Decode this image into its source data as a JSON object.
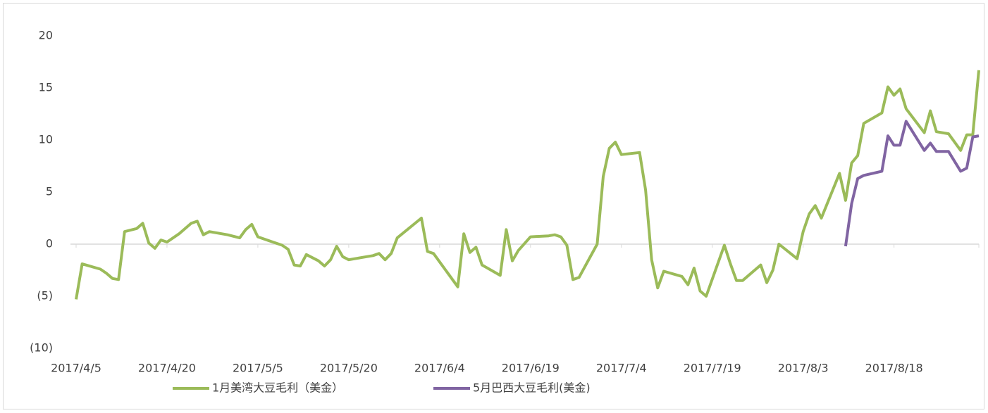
{
  "chart_data": {
    "type": "line",
    "x": [
      "2017/4/5",
      "2017/4/6",
      "2017/4/9",
      "2017/4/10",
      "2017/4/11",
      "2017/4/12",
      "2017/4/13",
      "2017/4/15",
      "2017/4/16",
      "2017/4/17",
      "2017/4/18",
      "2017/4/19",
      "2017/4/20",
      "2017/4/22",
      "2017/4/24",
      "2017/4/25",
      "2017/4/26",
      "2017/4/27",
      "2017/4/30",
      "2017/5/2",
      "2017/5/3",
      "2017/5/4",
      "2017/5/5",
      "2017/5/7",
      "2017/5/9",
      "2017/5/10",
      "2017/5/11",
      "2017/5/12",
      "2017/5/13",
      "2017/5/15",
      "2017/5/16",
      "2017/5/17",
      "2017/5/18",
      "2017/5/19",
      "2017/5/20",
      "2017/5/22",
      "2017/5/24",
      "2017/5/25",
      "2017/5/26",
      "2017/5/27",
      "2017/5/28",
      "2017/6/1",
      "2017/6/2",
      "2017/6/3",
      "2017/6/5",
      "2017/6/7",
      "2017/6/8",
      "2017/6/9",
      "2017/6/10",
      "2017/6/11",
      "2017/6/14",
      "2017/6/15",
      "2017/6/16",
      "2017/6/17",
      "2017/6/19",
      "2017/6/22",
      "2017/6/23",
      "2017/6/24",
      "2017/6/25",
      "2017/6/26",
      "2017/6/27",
      "2017/6/30",
      "2017/7/1",
      "2017/7/2",
      "2017/7/3",
      "2017/7/4",
      "2017/7/7",
      "2017/7/8",
      "2017/7/9",
      "2017/7/10",
      "2017/7/11",
      "2017/7/14",
      "2017/7/15",
      "2017/7/16",
      "2017/7/17",
      "2017/7/18",
      "2017/7/21",
      "2017/7/22",
      "2017/7/23",
      "2017/7/24",
      "2017/7/27",
      "2017/7/28",
      "2017/7/29",
      "2017/7/30",
      "2017/8/2",
      "2017/8/3",
      "2017/8/4",
      "2017/8/5",
      "2017/8/6",
      "2017/8/9",
      "2017/8/10",
      "2017/8/11",
      "2017/8/12",
      "2017/8/13",
      "2017/8/16",
      "2017/8/17",
      "2017/8/18",
      "2017/8/19",
      "2017/8/20",
      "2017/8/23",
      "2017/8/24",
      "2017/8/25",
      "2017/8/27",
      "2017/8/29",
      "2017/8/30",
      "2017/8/31",
      "2017/9/1"
    ],
    "series": [
      {
        "name": "1月美湾大豆毛利（美金）",
        "color": "#9bbb59",
        "values": [
          -5.3,
          -1.9,
          -2.4,
          -2.8,
          -3.3,
          -3.4,
          1.2,
          1.5,
          2.0,
          0.1,
          -0.4,
          0.4,
          0.2,
          1.0,
          2.0,
          2.2,
          0.9,
          1.2,
          0.9,
          0.6,
          1.4,
          1.9,
          0.7,
          0.3,
          -0.1,
          -0.5,
          -2.0,
          -2.1,
          -1.0,
          -1.6,
          -2.1,
          -1.5,
          -0.2,
          -1.2,
          -1.5,
          -1.3,
          -1.1,
          -0.9,
          -1.5,
          -0.9,
          0.6,
          2.5,
          -0.7,
          -0.9,
          -2.5,
          -4.1,
          1.0,
          -0.8,
          -0.3,
          -2.0,
          -3.0,
          1.4,
          -1.6,
          -0.6,
          0.7,
          0.8,
          0.9,
          0.7,
          -0.1,
          -3.4,
          -3.2,
          0.0,
          6.5,
          9.2,
          9.8,
          8.6,
          8.8,
          5.2,
          -1.5,
          -4.2,
          -2.6,
          -3.1,
          -3.9,
          -2.3,
          -4.5,
          -5.0,
          -0.1,
          -1.9,
          -3.5,
          -3.5,
          -2.0,
          -3.7,
          -2.5,
          0.0,
          -1.4,
          1.2,
          2.9,
          3.7,
          2.5,
          6.8,
          4.2,
          7.8,
          8.5,
          11.6,
          12.6,
          15.1,
          14.3,
          14.9,
          13.0,
          10.7,
          12.8,
          10.8,
          10.6,
          9.0,
          10.5,
          10.5,
          16.7
        ]
      },
      {
        "name": "5月巴西大豆毛利(美金)",
        "color": "#8064a2",
        "values": [
          null,
          null,
          null,
          null,
          null,
          null,
          null,
          null,
          null,
          null,
          null,
          null,
          null,
          null,
          null,
          null,
          null,
          null,
          null,
          null,
          null,
          null,
          null,
          null,
          null,
          null,
          null,
          null,
          null,
          null,
          null,
          null,
          null,
          null,
          null,
          null,
          null,
          null,
          null,
          null,
          null,
          null,
          null,
          null,
          null,
          null,
          null,
          null,
          null,
          null,
          null,
          null,
          null,
          null,
          null,
          null,
          null,
          null,
          null,
          null,
          null,
          null,
          null,
          null,
          null,
          null,
          null,
          null,
          null,
          null,
          null,
          null,
          null,
          null,
          null,
          null,
          null,
          null,
          null,
          null,
          null,
          null,
          null,
          null,
          null,
          null,
          null,
          null,
          null,
          null,
          -0.2,
          3.9,
          6.3,
          6.6,
          7.0,
          10.4,
          9.5,
          9.5,
          11.8,
          9.0,
          9.7,
          8.9,
          8.9,
          7.0,
          7.3,
          10.3,
          10.4
        ]
      }
    ],
    "xlim": [
      "2017/4/5",
      "2017/9/1"
    ],
    "xticks": [
      "2017/4/5",
      "2017/4/20",
      "2017/5/5",
      "2017/5/20",
      "2017/6/4",
      "2017/6/19",
      "2017/7/4",
      "2017/7/19",
      "2017/8/3",
      "2017/8/18"
    ],
    "ylim": [
      -10,
      20
    ],
    "yticks": [
      {
        "value": -10,
        "label": "(10)"
      },
      {
        "value": -5,
        "label": "(5)"
      },
      0,
      5,
      10,
      15,
      20
    ],
    "negative_tick_color": "#e00000",
    "legend": "bottom"
  }
}
